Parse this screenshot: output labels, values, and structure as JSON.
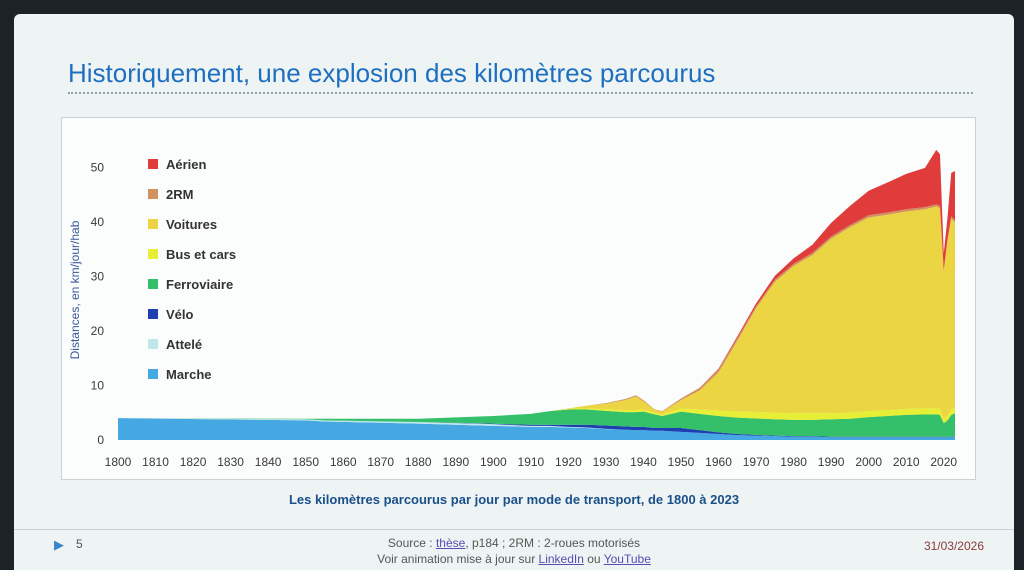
{
  "slide": {
    "title": "Historiquement, une explosion des kilomètres parcourus",
    "page_number": "5",
    "date": "31/03/2026",
    "source_prefix": "Source : ",
    "source_link": "thèse",
    "source_rest": ", p184 ; 2RM : 2-roues motorisés",
    "anim_prefix": "Voir animation mise à jour sur ",
    "anim_link_1": "LinkedIn",
    "anim_mid": " ou ",
    "anim_link_2": "YouTube"
  },
  "chart_data": {
    "type": "area",
    "stacked": true,
    "title": "Les kilomètres parcourus par jour par mode de transport, de 1800 à 2023",
    "ylabel": "Distances, en km/jour/hab",
    "xlabel": "",
    "xlim": [
      1800,
      2023
    ],
    "ylim": [
      0,
      55
    ],
    "x_ticks": [
      1800,
      1810,
      1820,
      1830,
      1840,
      1850,
      1860,
      1870,
      1880,
      1890,
      1900,
      1910,
      1920,
      1930,
      1940,
      1950,
      1960,
      1970,
      1980,
      1990,
      2000,
      2010,
      2020
    ],
    "y_ticks": [
      0,
      10,
      20,
      30,
      40,
      50
    ],
    "legend_position": "top-left",
    "x": [
      1800,
      1850,
      1855,
      1880,
      1900,
      1910,
      1915,
      1920,
      1925,
      1930,
      1935,
      1938,
      1940,
      1943,
      1945,
      1950,
      1955,
      1960,
      1965,
      1970,
      1975,
      1980,
      1985,
      1990,
      1995,
      2000,
      2005,
      2010,
      2015,
      2018,
      2019,
      2020,
      2021,
      2022,
      2023
    ],
    "series": [
      {
        "name": "Marche",
        "color": "#45a8e2",
        "values": [
          4,
          3.6,
          3.4,
          3.0,
          2.6,
          2.4,
          2.4,
          2.3,
          2.2,
          2.0,
          1.9,
          1.8,
          1.8,
          1.7,
          1.7,
          1.5,
          1.3,
          1.1,
          0.9,
          0.8,
          0.7,
          0.6,
          0.6,
          0.5,
          0.5,
          0.5,
          0.5,
          0.5,
          0.5,
          0.5,
          0.5,
          0.5,
          0.5,
          0.5,
          0.5
        ]
      },
      {
        "name": "Attelé",
        "color": "#bfe6ea",
        "values": [
          0,
          0.2,
          0.2,
          0.3,
          0.3,
          0.2,
          0.2,
          0.1,
          0.1,
          0.05,
          0,
          0,
          0,
          0,
          0,
          0,
          0,
          0,
          0,
          0,
          0,
          0,
          0,
          0,
          0,
          0,
          0,
          0,
          0,
          0,
          0,
          0,
          0,
          0,
          0
        ]
      },
      {
        "name": "Vélo",
        "color": "#1f3fb0",
        "values": [
          0,
          0,
          0,
          0,
          0.1,
          0.2,
          0.2,
          0.4,
          0.5,
          0.6,
          0.6,
          0.6,
          0.6,
          0.5,
          0.5,
          0.7,
          0.5,
          0.3,
          0.2,
          0.15,
          0.1,
          0.1,
          0.1,
          0.1,
          0.1,
          0.1,
          0.1,
          0.1,
          0.1,
          0.1,
          0.1,
          0.1,
          0.1,
          0.1,
          0.1
        ]
      },
      {
        "name": "Ferroviaire",
        "color": "#34c06a",
        "values": [
          0,
          0.1,
          0.3,
          0.6,
          1.4,
          2.0,
          2.5,
          2.8,
          2.8,
          2.7,
          2.6,
          2.7,
          2.8,
          2.5,
          2.2,
          3.0,
          3.0,
          3.0,
          3.0,
          3.0,
          3.0,
          3.0,
          3.0,
          3.2,
          3.3,
          3.6,
          3.8,
          4.0,
          4.1,
          4.1,
          4.0,
          2.5,
          3.0,
          4.0,
          4.3
        ]
      },
      {
        "name": "Bus et cars",
        "color": "#e6ee35",
        "values": [
          0,
          0,
          0,
          0,
          0,
          0,
          0,
          0.1,
          0.2,
          0.3,
          0.4,
          0.4,
          0.4,
          0.3,
          0.3,
          0.6,
          0.8,
          1.0,
          1.1,
          1.2,
          1.2,
          1.2,
          1.2,
          1.1,
          1.1,
          1.1,
          1.1,
          1.1,
          1.1,
          1.1,
          1.1,
          0.8,
          0.9,
          1.0,
          1.0
        ]
      },
      {
        "name": "Voitures",
        "color": "#ecd542",
        "values": [
          0,
          0,
          0,
          0,
          0,
          0,
          0,
          0.1,
          0.5,
          1.0,
          1.8,
          2.5,
          1.5,
          0.5,
          0.5,
          1.5,
          3.5,
          7,
          13,
          19,
          24,
          27,
          29,
          32,
          34,
          35.5,
          35.8,
          36.2,
          36.5,
          37,
          36.8,
          27,
          32,
          35,
          34
        ]
      },
      {
        "name": "2RM",
        "color": "#d29260",
        "values": [
          0,
          0,
          0,
          0,
          0,
          0,
          0,
          0,
          0,
          0.1,
          0.2,
          0.2,
          0.2,
          0.1,
          0.1,
          0.3,
          0.5,
          0.6,
          0.5,
          0.4,
          0.4,
          0.4,
          0.4,
          0.4,
          0.4,
          0.4,
          0.4,
          0.4,
          0.4,
          0.4,
          0.4,
          0.3,
          0.3,
          0.4,
          0.4
        ]
      },
      {
        "name": "Aérien",
        "color": "#e03c3c",
        "values": [
          0,
          0,
          0,
          0,
          0,
          0,
          0,
          0,
          0,
          0,
          0,
          0,
          0,
          0,
          0,
          0,
          0,
          0.1,
          0.3,
          0.5,
          0.7,
          1,
          1.5,
          2.5,
          3.5,
          4.5,
          5.5,
          6.5,
          7.2,
          10,
          9.5,
          3,
          4,
          8,
          9
        ]
      }
    ]
  }
}
